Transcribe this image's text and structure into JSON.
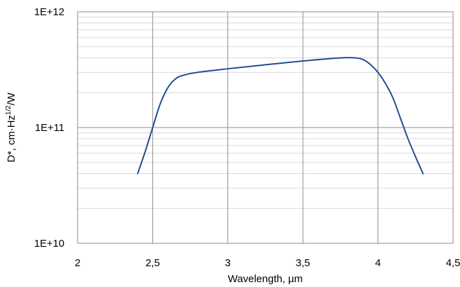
{
  "chart_data": {
    "type": "line",
    "title": "",
    "xlabel": "Wavelength, µm",
    "ylabel": {
      "prefix": "D*, cm·Hz",
      "superscript": "1/2",
      "suffix": "/W"
    },
    "xlim": [
      2,
      4.5
    ],
    "ylim": [
      10000000000,
      1000000000000
    ],
    "yscale": "log",
    "grid": true,
    "x_ticks": [
      "2",
      "2,5",
      "3",
      "3,5",
      "4",
      "4,5"
    ],
    "y_ticks": [
      "1E+10",
      "1E+11",
      "1E+12"
    ],
    "series": [
      {
        "color": "#1f4e8f",
        "points": [
          [
            2.4,
            40000000000
          ],
          [
            2.45,
            62000000000
          ],
          [
            2.5,
            100000000000
          ],
          [
            2.55,
            160000000000
          ],
          [
            2.6,
            220000000000
          ],
          [
            2.65,
            262000000000
          ],
          [
            2.7,
            282000000000
          ],
          [
            2.8,
            300000000000
          ],
          [
            3.0,
            322000000000
          ],
          [
            3.2,
            343000000000
          ],
          [
            3.4,
            365000000000
          ],
          [
            3.6,
            386000000000
          ],
          [
            3.75,
            400000000000
          ],
          [
            3.85,
            400000000000
          ],
          [
            3.9,
            387000000000
          ],
          [
            3.95,
            350000000000
          ],
          [
            4.0,
            300000000000
          ],
          [
            4.05,
            240000000000
          ],
          [
            4.1,
            180000000000
          ],
          [
            4.15,
            120000000000
          ],
          [
            4.2,
            80000000000
          ],
          [
            4.25,
            56000000000
          ],
          [
            4.3,
            40000000000
          ]
        ]
      }
    ]
  }
}
